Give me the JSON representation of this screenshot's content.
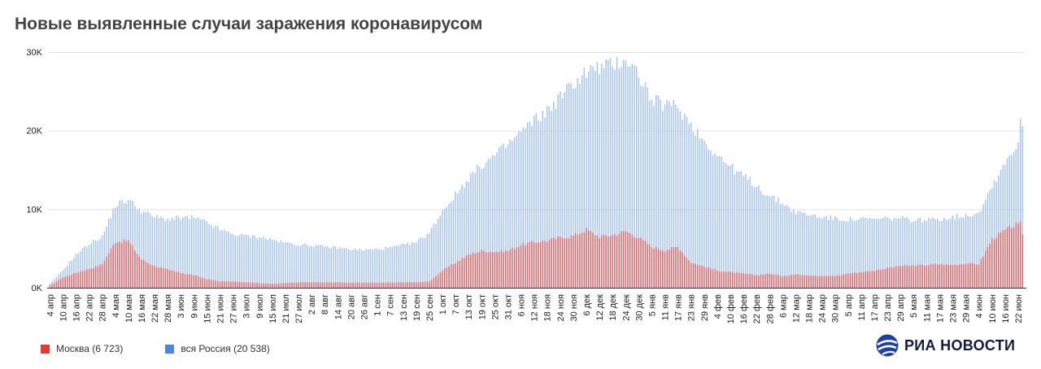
{
  "title": "Новые выявленные случаи заражения коронавирусом",
  "colors": {
    "moscow": "#e06666",
    "russia": "#a4c2f4",
    "russia_legend": "#4a86e8",
    "moscow_legend": "#e53935"
  },
  "logo": {
    "text": "РИА НОВОСТИ",
    "icon": "ria-globe-icon"
  },
  "chart_data": {
    "type": "bar",
    "title": "Новые выявленные случаи заражения коронавирусом",
    "xlabel": "",
    "ylabel": "",
    "ylim": [
      0,
      30000
    ],
    "y_ticks": [
      "0K",
      "10K",
      "20K",
      "30K"
    ],
    "y_tick_values": [
      0,
      10000,
      20000,
      30000
    ],
    "grid": true,
    "legend_position": "bottom-left",
    "x_tick_labels": [
      "4 апр",
      "10 апр",
      "16 апр",
      "22 апр",
      "28 апр",
      "4 мая",
      "10 мая",
      "16 мая",
      "22 мая",
      "28 мая",
      "3 июн",
      "9 июн",
      "15 июн",
      "21 июн",
      "27 июн",
      "3 июл",
      "9 июл",
      "15 июл",
      "21 июл",
      "27 июл",
      "2 авг",
      "8 авг",
      "14 авг",
      "20 авг",
      "26 авг",
      "1 сен",
      "7 сен",
      "13 сен",
      "19 сен",
      "25 сен",
      "1 окт",
      "7 окт",
      "13 окт",
      "19 окт",
      "25 окт",
      "31 окт",
      "6 ноя",
      "12 ноя",
      "18 ноя",
      "24 ноя",
      "30 ноя",
      "6 дек",
      "12 дек",
      "18 дек",
      "24 дек",
      "30 дек",
      "5 янв",
      "11 янв",
      "17 янв",
      "23 янв",
      "29 янв",
      "4 фев",
      "10 фев",
      "16 фев",
      "22 фев",
      "28 фев",
      "6 мар",
      "12 мар",
      "18 мар",
      "24 мар",
      "30 мар",
      "5 апр",
      "11 апр",
      "17 апр",
      "23 апр",
      "29 апр",
      "5 мая",
      "11 мая",
      "17 мая",
      "23 мая",
      "29 мая",
      "4 июн",
      "10 июн",
      "16 июн",
      "22 июн"
    ],
    "x_tick_every_days": 6,
    "series": [
      {
        "name": "Москва (6 723)",
        "color": "#e06666",
        "anchors_by_tick": [
          300,
          1300,
          1900,
          2400,
          3000,
          5900,
          6000,
          3600,
          2800,
          2300,
          1900,
          1600,
          1100,
          800,
          800,
          700,
          600,
          500,
          600,
          700,
          700,
          700,
          700,
          650,
          650,
          650,
          650,
          700,
          700,
          800,
          2200,
          3200,
          4200,
          4700,
          4600,
          4700,
          5500,
          5800,
          6000,
          6400,
          6600,
          7400,
          6500,
          6700,
          7200,
          6400,
          5200,
          4800,
          5200,
          3200,
          2700,
          2200,
          2000,
          1800,
          1600,
          1800,
          1500,
          1700,
          1600,
          1500,
          1500,
          1800,
          2000,
          2200,
          2500,
          2800,
          2800,
          2900,
          3000,
          2900,
          3100,
          3000,
          6200,
          7300,
          8200
        ],
        "tail": [
          8500,
          6723
        ]
      },
      {
        "name": "вся Россия (20 538)",
        "color": "#a4c2f4",
        "anchors_by_tick": [
          500,
          2200,
          4200,
          5600,
          6500,
          10500,
          11200,
          9800,
          9000,
          8700,
          8900,
          8900,
          8300,
          7400,
          6800,
          6600,
          6500,
          6100,
          5700,
          5500,
          5400,
          5200,
          5100,
          4900,
          4800,
          4900,
          5100,
          5400,
          5800,
          7000,
          9800,
          11800,
          14000,
          15600,
          16800,
          18200,
          19800,
          21300,
          22500,
          24300,
          26000,
          27500,
          28000,
          28300,
          29200,
          27200,
          23800,
          23300,
          23000,
          20800,
          18700,
          16900,
          15400,
          14200,
          13000,
          11600,
          10800,
          9600,
          9300,
          9000,
          8800,
          8700,
          8700,
          8700,
          8800,
          8800,
          8600,
          8600,
          8800,
          9000,
          9200,
          9600,
          13000,
          16000,
          18500
        ],
        "tail": [
          21500,
          20538
        ]
      }
    ]
  }
}
